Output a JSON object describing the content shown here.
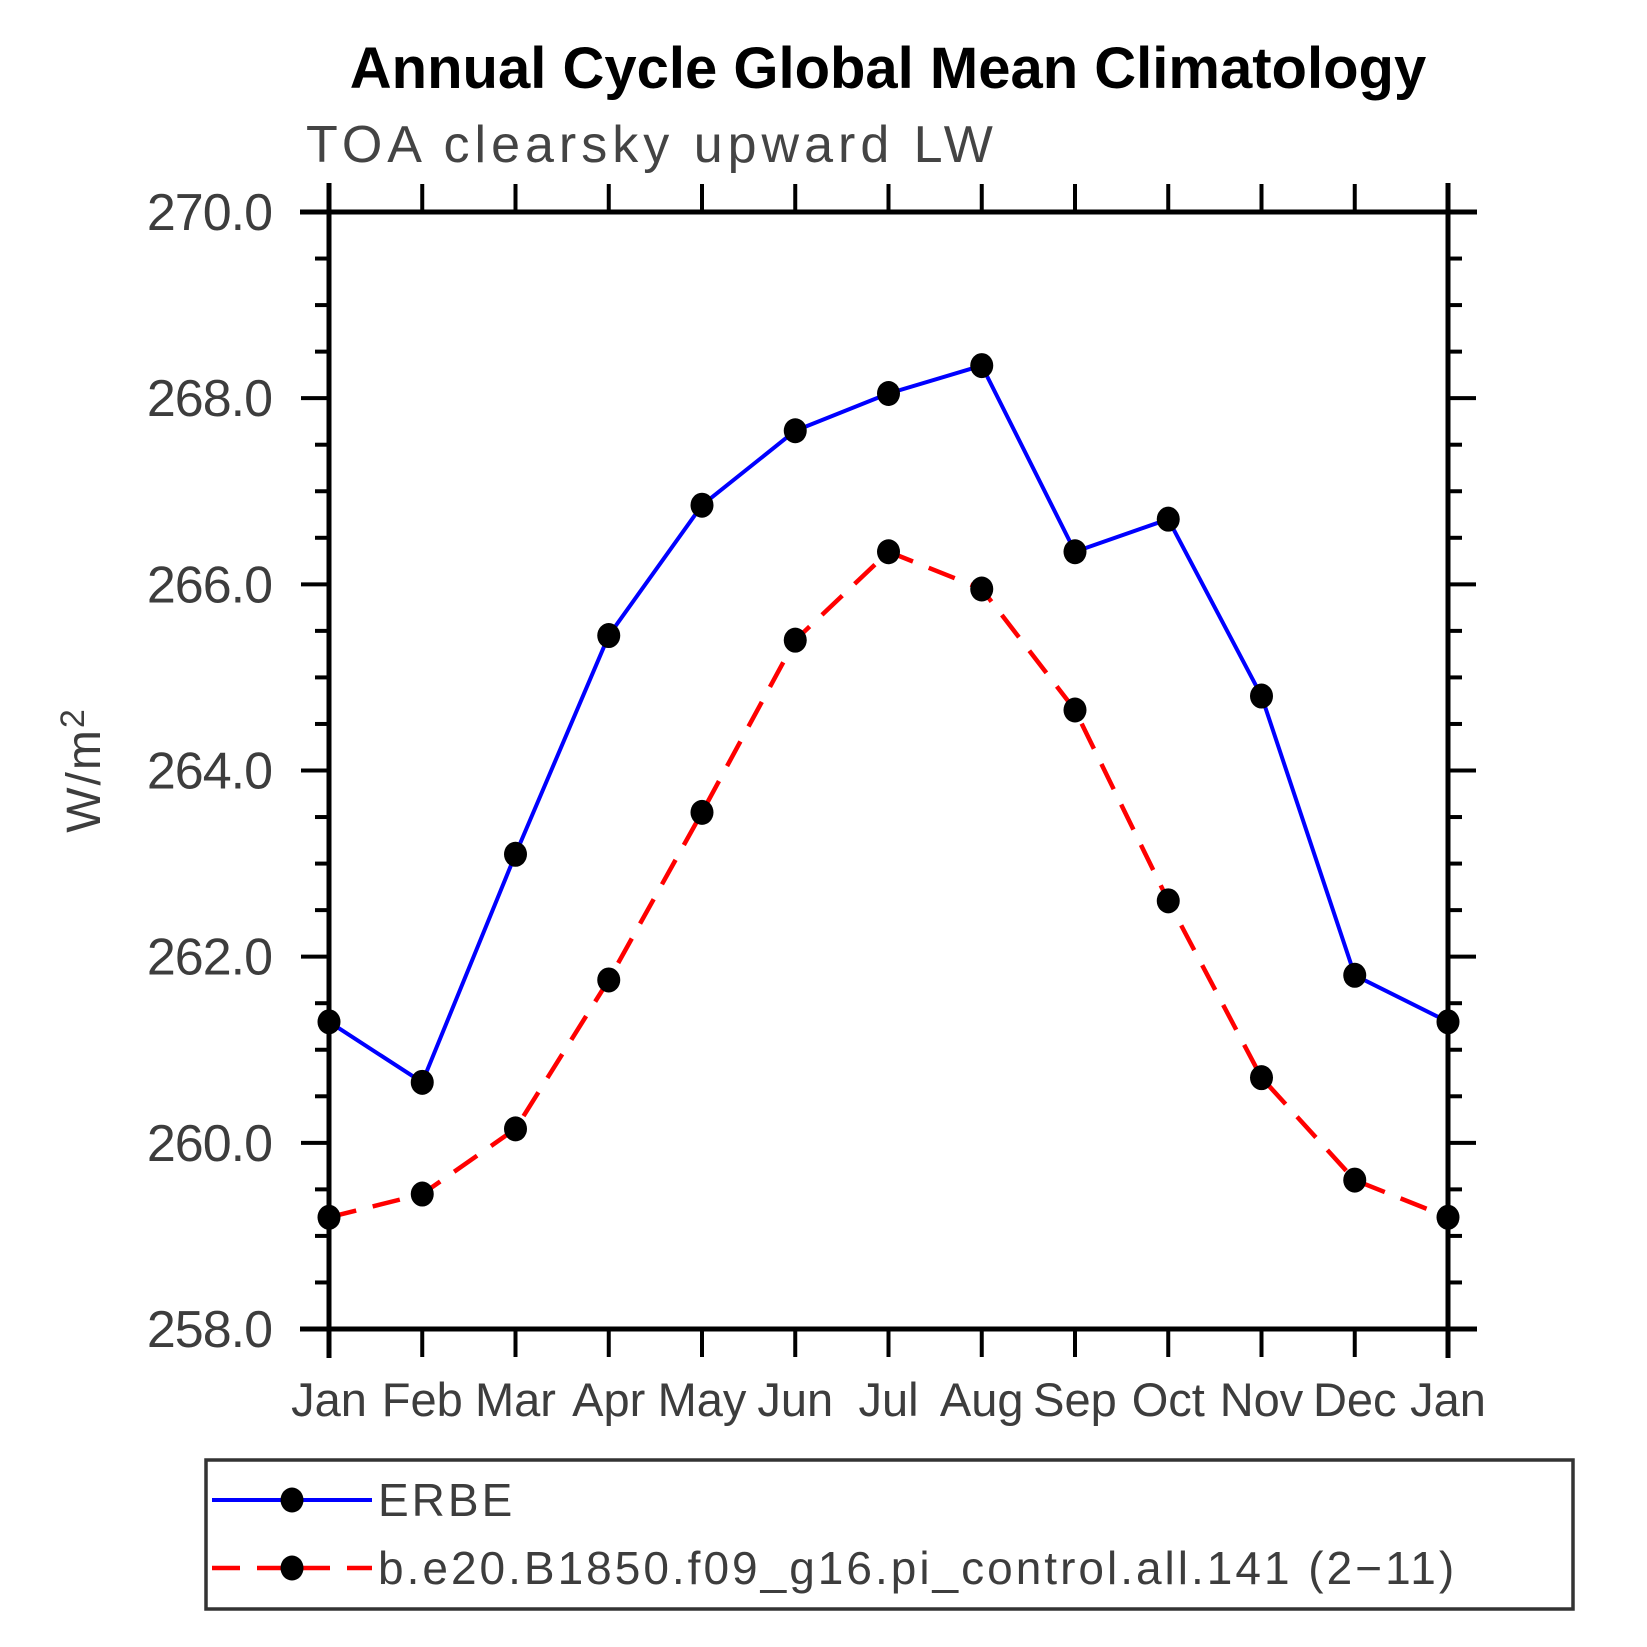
{
  "title": "Annual Cycle Global Mean Climatology",
  "subtitle": "TOA clearsky upward LW",
  "y_axis": {
    "label": "W/m²",
    "label_base": "W/m",
    "label_sup": "2",
    "tick_labels": [
      "270.0",
      "268.0",
      "266.0",
      "264.0",
      "262.0",
      "260.0",
      "258.0"
    ]
  },
  "x_axis": {
    "tick_labels": [
      "Jan",
      "Feb",
      "Mar",
      "Apr",
      "May",
      "Jun",
      "Jul",
      "Aug",
      "Sep",
      "Oct",
      "Nov",
      "Dec",
      "Jan"
    ]
  },
  "legend": {
    "entries": [
      {
        "label": "ERBE",
        "color": "#0000ff",
        "line_style": "solid"
      },
      {
        "label": "b.e20.B1850.f09_g16.pi_control.all.141 (2−11)",
        "color": "#ff0000",
        "line_style": "dashed"
      }
    ]
  },
  "chart_data": {
    "type": "line",
    "title": "Annual Cycle Global Mean Climatology",
    "subtitle": "TOA clearsky upward LW",
    "ylabel": "W/m²",
    "xlabel": "",
    "categories": [
      "Jan",
      "Feb",
      "Mar",
      "Apr",
      "May",
      "Jun",
      "Jul",
      "Aug",
      "Sep",
      "Oct",
      "Nov",
      "Dec",
      "Jan"
    ],
    "series": [
      {
        "name": "ERBE",
        "color": "#0000ff",
        "line_style": "solid",
        "marker": "black-filled-circle",
        "values": [
          261.3,
          260.65,
          263.1,
          265.45,
          266.85,
          267.65,
          268.05,
          268.35,
          266.35,
          266.7,
          264.8,
          261.8,
          261.3
        ]
      },
      {
        "name": "b.e20.B1850.f09_g16.pi_control.all.141 (2−11)",
        "color": "#ff0000",
        "line_style": "dashed",
        "marker": "black-filled-circle",
        "values": [
          259.2,
          259.45,
          260.15,
          261.75,
          263.55,
          265.4,
          266.35,
          265.95,
          264.65,
          262.6,
          260.7,
          259.6,
          259.2
        ]
      }
    ],
    "ylim": [
      258.0,
      270.0
    ],
    "ytick_major_step": 2.0,
    "ytick_minor_step": 0.5,
    "grid": false,
    "marker_color": "#000000",
    "legend_position": "bottom-left-box"
  }
}
